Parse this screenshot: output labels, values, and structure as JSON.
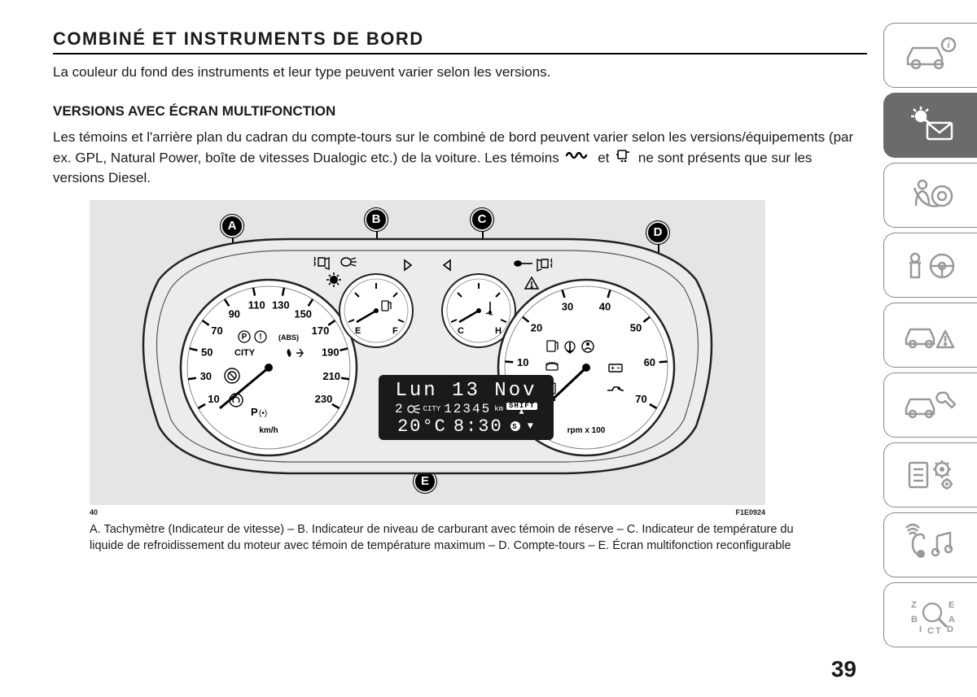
{
  "title": "COMBINÉ ET INSTRUMENTS DE BORD",
  "intro": "La couleur du fond des instruments et leur type peuvent varier selon les versions.",
  "subtitle": "VERSIONS AVEC ÉCRAN MULTIFONCTION",
  "body_p1a": "Les témoins et l'arrière plan du cadran du compte-tours sur le combiné de bord peuvent varier selon les versions/équipements (par ex. GPL, Natural Power, boîte de vitesses Dualogic etc.) de la voiture. Les témoins ",
  "body_p1b": " et ",
  "body_p1c": " ne sont présents que sur les versions Diesel.",
  "figure": {
    "ref_left": "40",
    "ref_right": "F1E0924",
    "callouts": {
      "A": "A",
      "B": "B",
      "C": "C",
      "D": "D",
      "E": "E"
    },
    "speedo": {
      "unit": "km/h",
      "city_label": "CITY",
      "ticks": [
        "10",
        "30",
        "50",
        "70",
        "90",
        "110",
        "130",
        "150",
        "170",
        "190",
        "210",
        "230"
      ]
    },
    "tacho": {
      "unit": "rpm x 100",
      "ticks": [
        "0",
        "10",
        "20",
        "30",
        "40",
        "50",
        "60",
        "70"
      ]
    },
    "fuel": {
      "left": "E",
      "right": "F"
    },
    "temp": {
      "left": "C",
      "right": "H"
    },
    "lcd": {
      "line1": "Lun 13 Nov",
      "gear": "2",
      "city": "CITY",
      "odo": "12345",
      "odo_unit": "km",
      "shift": "SHIFT",
      "temp": "20°C",
      "time": "8:30"
    }
  },
  "caption": "A. Tachymètre (Indicateur de vitesse) – B. Indicateur de niveau de carburant avec témoin de réserve – C. Indicateur de température du liquide de refroidissement du moteur avec témoin de température maximum – D. Compte-tours – E. Écran multifonction reconfigurable",
  "page_number": "39",
  "colors": {
    "figure_bg": "#e5e5e5",
    "tab_active_bg": "#6b6b6b",
    "tab_border": "#888888",
    "lcd_bg": "#1a1a1a"
  }
}
